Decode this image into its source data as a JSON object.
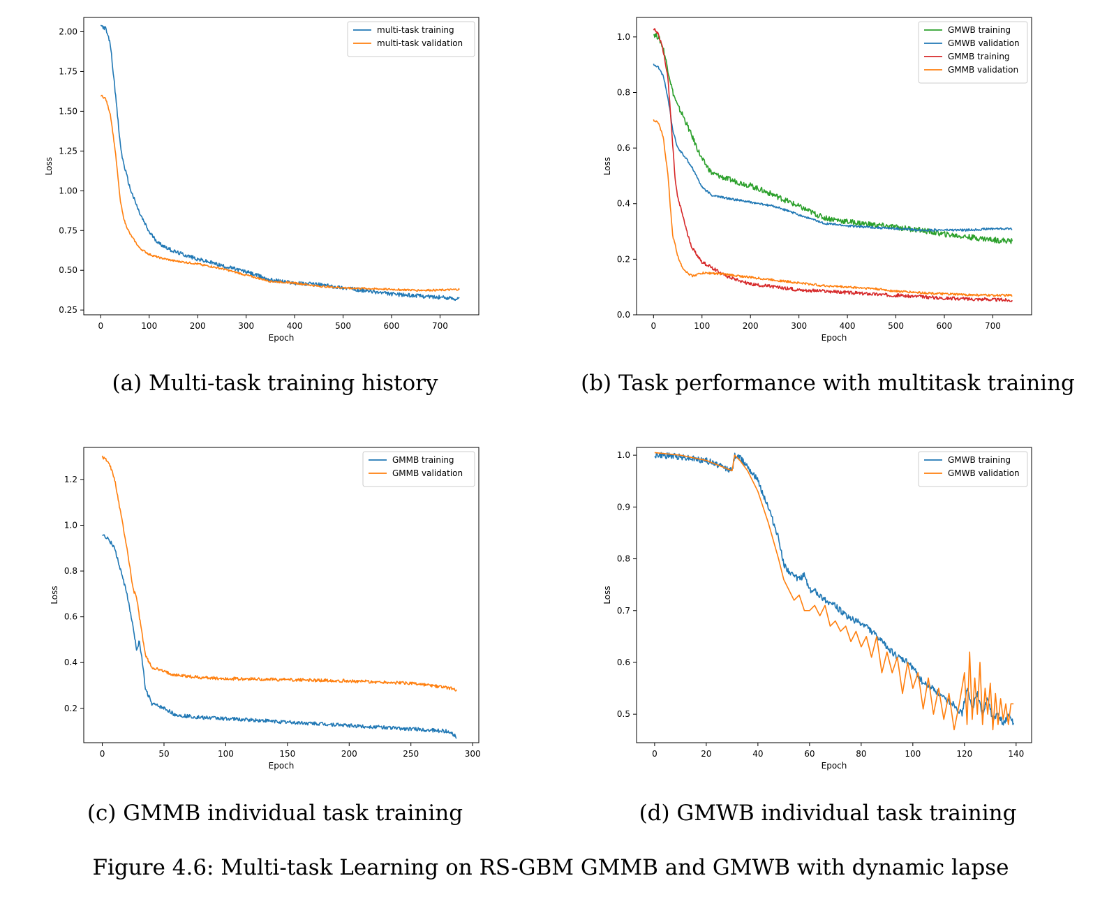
{
  "figure_caption": "Figure 4.6: Multi-task Learning on RS-GBM GMMB and GMWB with dynamic lapse",
  "colors": {
    "blue": "#1f77b4",
    "orange": "#ff7f0e",
    "green": "#2ca02c",
    "red": "#d62728"
  },
  "chart_data": [
    {
      "id": "a",
      "type": "line",
      "caption": "(a) Multi-task training history",
      "xlabel": "Epoch",
      "ylabel": "Loss",
      "xlim": [
        -35,
        780
      ],
      "ylim": [
        0.22,
        2.09
      ],
      "xticks": [
        0,
        100,
        200,
        300,
        400,
        500,
        600,
        700
      ],
      "yticks": [
        0.25,
        0.5,
        0.75,
        1.0,
        1.25,
        1.5,
        1.75,
        2.0
      ],
      "ytick_labels": [
        "0.25",
        "0.50",
        "0.75",
        "1.00",
        "1.25",
        "1.50",
        "1.75",
        "2.00"
      ],
      "legend_position": "top-right",
      "series": [
        {
          "name": "multi-task training",
          "color": "blue",
          "x": [
            0,
            10,
            20,
            30,
            40,
            45,
            50,
            60,
            80,
            100,
            120,
            150,
            200,
            250,
            300,
            350,
            400,
            450,
            500,
            550,
            600,
            650,
            700,
            740
          ],
          "y": [
            2.04,
            2.02,
            1.92,
            1.62,
            1.3,
            1.2,
            1.14,
            1.02,
            0.86,
            0.74,
            0.67,
            0.62,
            0.57,
            0.53,
            0.49,
            0.44,
            0.42,
            0.41,
            0.39,
            0.37,
            0.35,
            0.34,
            0.33,
            0.32
          ],
          "noise": 0.012
        },
        {
          "name": "multi-task validation",
          "color": "orange",
          "x": [
            0,
            10,
            20,
            30,
            40,
            45,
            50,
            60,
            80,
            100,
            120,
            150,
            200,
            250,
            300,
            350,
            400,
            450,
            500,
            550,
            600,
            650,
            700,
            740
          ],
          "y": [
            1.6,
            1.58,
            1.48,
            1.25,
            0.95,
            0.86,
            0.8,
            0.73,
            0.64,
            0.6,
            0.58,
            0.56,
            0.54,
            0.51,
            0.47,
            0.43,
            0.42,
            0.4,
            0.39,
            0.385,
            0.38,
            0.375,
            0.375,
            0.38
          ],
          "noise": 0.006
        }
      ]
    },
    {
      "id": "b",
      "type": "line",
      "caption": "(b) Task performance with multitask training",
      "xlabel": "Epoch",
      "ylabel": "Loss",
      "xlim": [
        -35,
        780
      ],
      "ylim": [
        0.0,
        1.07
      ],
      "xticks": [
        0,
        100,
        200,
        300,
        400,
        500,
        600,
        700
      ],
      "yticks": [
        0.0,
        0.2,
        0.4,
        0.6,
        0.8,
        1.0
      ],
      "ytick_labels": [
        "0.0",
        "0.2",
        "0.4",
        "0.6",
        "0.8",
        "1.0"
      ],
      "legend_position": "top-right",
      "series": [
        {
          "name": "GMWB training",
          "color": "green",
          "x": [
            0,
            10,
            20,
            30,
            40,
            50,
            60,
            80,
            100,
            120,
            150,
            200,
            250,
            300,
            350,
            400,
            450,
            500,
            550,
            600,
            650,
            700,
            740
          ],
          "y": [
            1.01,
            1.0,
            0.96,
            0.88,
            0.8,
            0.75,
            0.72,
            0.64,
            0.56,
            0.51,
            0.49,
            0.465,
            0.43,
            0.39,
            0.35,
            0.335,
            0.325,
            0.315,
            0.305,
            0.29,
            0.28,
            0.27,
            0.265
          ],
          "noise": 0.01
        },
        {
          "name": "GMWB validation",
          "color": "blue",
          "x": [
            0,
            10,
            20,
            30,
            40,
            50,
            60,
            80,
            100,
            120,
            150,
            200,
            250,
            300,
            350,
            400,
            450,
            500,
            550,
            600,
            650,
            700,
            740
          ],
          "y": [
            0.9,
            0.89,
            0.86,
            0.78,
            0.66,
            0.6,
            0.58,
            0.53,
            0.46,
            0.43,
            0.42,
            0.405,
            0.39,
            0.36,
            0.33,
            0.32,
            0.315,
            0.31,
            0.305,
            0.305,
            0.305,
            0.31,
            0.31
          ],
          "noise": 0.004
        },
        {
          "name": "GMMB training",
          "color": "red",
          "x": [
            0,
            10,
            20,
            30,
            40,
            45,
            50,
            60,
            70,
            80,
            100,
            120,
            150,
            200,
            250,
            300,
            350,
            400,
            450,
            500,
            550,
            600,
            650,
            700,
            740
          ],
          "y": [
            1.03,
            1.01,
            0.95,
            0.85,
            0.6,
            0.48,
            0.42,
            0.36,
            0.29,
            0.24,
            0.19,
            0.17,
            0.14,
            0.11,
            0.1,
            0.09,
            0.085,
            0.08,
            0.075,
            0.07,
            0.065,
            0.06,
            0.057,
            0.055,
            0.052
          ],
          "noise": 0.006
        },
        {
          "name": "GMMB validation",
          "color": "orange",
          "x": [
            0,
            10,
            20,
            30,
            35,
            40,
            45,
            50,
            60,
            70,
            80,
            90,
            100,
            120,
            150,
            200,
            250,
            300,
            350,
            400,
            450,
            500,
            550,
            600,
            650,
            700,
            740
          ],
          "y": [
            0.7,
            0.69,
            0.64,
            0.5,
            0.38,
            0.28,
            0.25,
            0.21,
            0.17,
            0.15,
            0.14,
            0.145,
            0.15,
            0.15,
            0.145,
            0.135,
            0.125,
            0.115,
            0.105,
            0.1,
            0.095,
            0.085,
            0.08,
            0.075,
            0.072,
            0.07,
            0.07
          ],
          "noise": 0.004
        }
      ]
    },
    {
      "id": "c",
      "type": "line",
      "caption": "(c) GMMB individual task training",
      "xlabel": "Epoch",
      "ylabel": "Loss",
      "xlim": [
        -15,
        305
      ],
      "ylim": [
        0.05,
        1.34
      ],
      "xticks": [
        0,
        50,
        100,
        150,
        200,
        250,
        300
      ],
      "yticks": [
        0.2,
        0.4,
        0.6,
        0.8,
        1.0,
        1.2
      ],
      "ytick_labels": [
        "0.2",
        "0.4",
        "0.6",
        "0.8",
        "1.0",
        "1.2"
      ],
      "legend_position": "top-right",
      "series": [
        {
          "name": "GMMB training",
          "color": "blue",
          "x": [
            0,
            5,
            10,
            15,
            20,
            25,
            28,
            30,
            33,
            35,
            38,
            40,
            45,
            50,
            60,
            80,
            100,
            150,
            200,
            250,
            280,
            287
          ],
          "y": [
            0.96,
            0.94,
            0.9,
            0.8,
            0.7,
            0.55,
            0.45,
            0.5,
            0.38,
            0.28,
            0.25,
            0.22,
            0.21,
            0.2,
            0.17,
            0.16,
            0.155,
            0.14,
            0.125,
            0.11,
            0.1,
            0.075
          ],
          "noise": 0.008
        },
        {
          "name": "GMMB validation",
          "color": "orange",
          "x": [
            0,
            5,
            10,
            15,
            20,
            25,
            28,
            30,
            33,
            35,
            38,
            40,
            45,
            50,
            60,
            80,
            100,
            150,
            200,
            250,
            280,
            287
          ],
          "y": [
            1.3,
            1.28,
            1.2,
            1.05,
            0.9,
            0.72,
            0.68,
            0.6,
            0.5,
            0.43,
            0.4,
            0.38,
            0.37,
            0.36,
            0.345,
            0.335,
            0.33,
            0.325,
            0.32,
            0.31,
            0.29,
            0.28
          ],
          "noise": 0.007
        }
      ]
    },
    {
      "id": "d",
      "type": "line",
      "caption": "(d) GMWB individual task training",
      "xlabel": "Epoch",
      "ylabel": "Loss",
      "xlim": [
        -7,
        146
      ],
      "ylim": [
        0.445,
        1.015
      ],
      "xticks": [
        0,
        20,
        40,
        60,
        80,
        100,
        120,
        140
      ],
      "yticks": [
        0.5,
        0.6,
        0.7,
        0.8,
        0.9,
        1.0
      ],
      "ytick_labels": [
        "0.5",
        "0.6",
        "0.7",
        "0.8",
        "0.9",
        "1.0"
      ],
      "legend_position": "top-right",
      "series": [
        {
          "name": "GMWB training",
          "color": "blue",
          "x": [
            0,
            10,
            20,
            25,
            30,
            31,
            33,
            36,
            40,
            44,
            48,
            50,
            53,
            56,
            58,
            60,
            63,
            66,
            70,
            74,
            78,
            82,
            86,
            90,
            94,
            98,
            100,
            104,
            108,
            112,
            116,
            119,
            121,
            123,
            125,
            127,
            129,
            131,
            133,
            135,
            137,
            139
          ],
          "y": [
            1.0,
            0.997,
            0.99,
            0.98,
            0.97,
            1.0,
            0.995,
            0.98,
            0.95,
            0.9,
            0.84,
            0.79,
            0.77,
            0.76,
            0.77,
            0.74,
            0.735,
            0.72,
            0.71,
            0.69,
            0.68,
            0.67,
            0.65,
            0.63,
            0.61,
            0.6,
            0.59,
            0.56,
            0.55,
            0.53,
            0.52,
            0.5,
            0.55,
            0.51,
            0.54,
            0.5,
            0.53,
            0.49,
            0.5,
            0.48,
            0.5,
            0.48
          ],
          "noise": 0.006
        },
        {
          "name": "GMWB validation",
          "color": "orange",
          "x": [
            0,
            10,
            20,
            25,
            30,
            31,
            33,
            36,
            40,
            44,
            48,
            50,
            52,
            54,
            56,
            58,
            60,
            62,
            64,
            66,
            68,
            70,
            72,
            74,
            76,
            78,
            80,
            82,
            84,
            86,
            88,
            90,
            92,
            94,
            96,
            98,
            100,
            102,
            104,
            106,
            108,
            110,
            112,
            114,
            116,
            118,
            120,
            121,
            122,
            123,
            124,
            125,
            126,
            127,
            128,
            129,
            130,
            131,
            132,
            133,
            134,
            135,
            136,
            137,
            138,
            139
          ],
          "y": [
            1.005,
            1.0,
            0.99,
            0.98,
            0.97,
            1.0,
            0.99,
            0.97,
            0.93,
            0.87,
            0.8,
            0.76,
            0.74,
            0.72,
            0.73,
            0.7,
            0.7,
            0.71,
            0.69,
            0.71,
            0.67,
            0.68,
            0.66,
            0.67,
            0.64,
            0.66,
            0.63,
            0.65,
            0.61,
            0.65,
            0.58,
            0.62,
            0.58,
            0.61,
            0.54,
            0.6,
            0.55,
            0.58,
            0.51,
            0.57,
            0.5,
            0.55,
            0.49,
            0.54,
            0.47,
            0.52,
            0.58,
            0.48,
            0.62,
            0.49,
            0.57,
            0.5,
            0.6,
            0.48,
            0.55,
            0.5,
            0.56,
            0.47,
            0.54,
            0.48,
            0.53,
            0.49,
            0.52,
            0.48,
            0.52,
            0.52
          ],
          "noise": 0.0
        }
      ]
    }
  ]
}
